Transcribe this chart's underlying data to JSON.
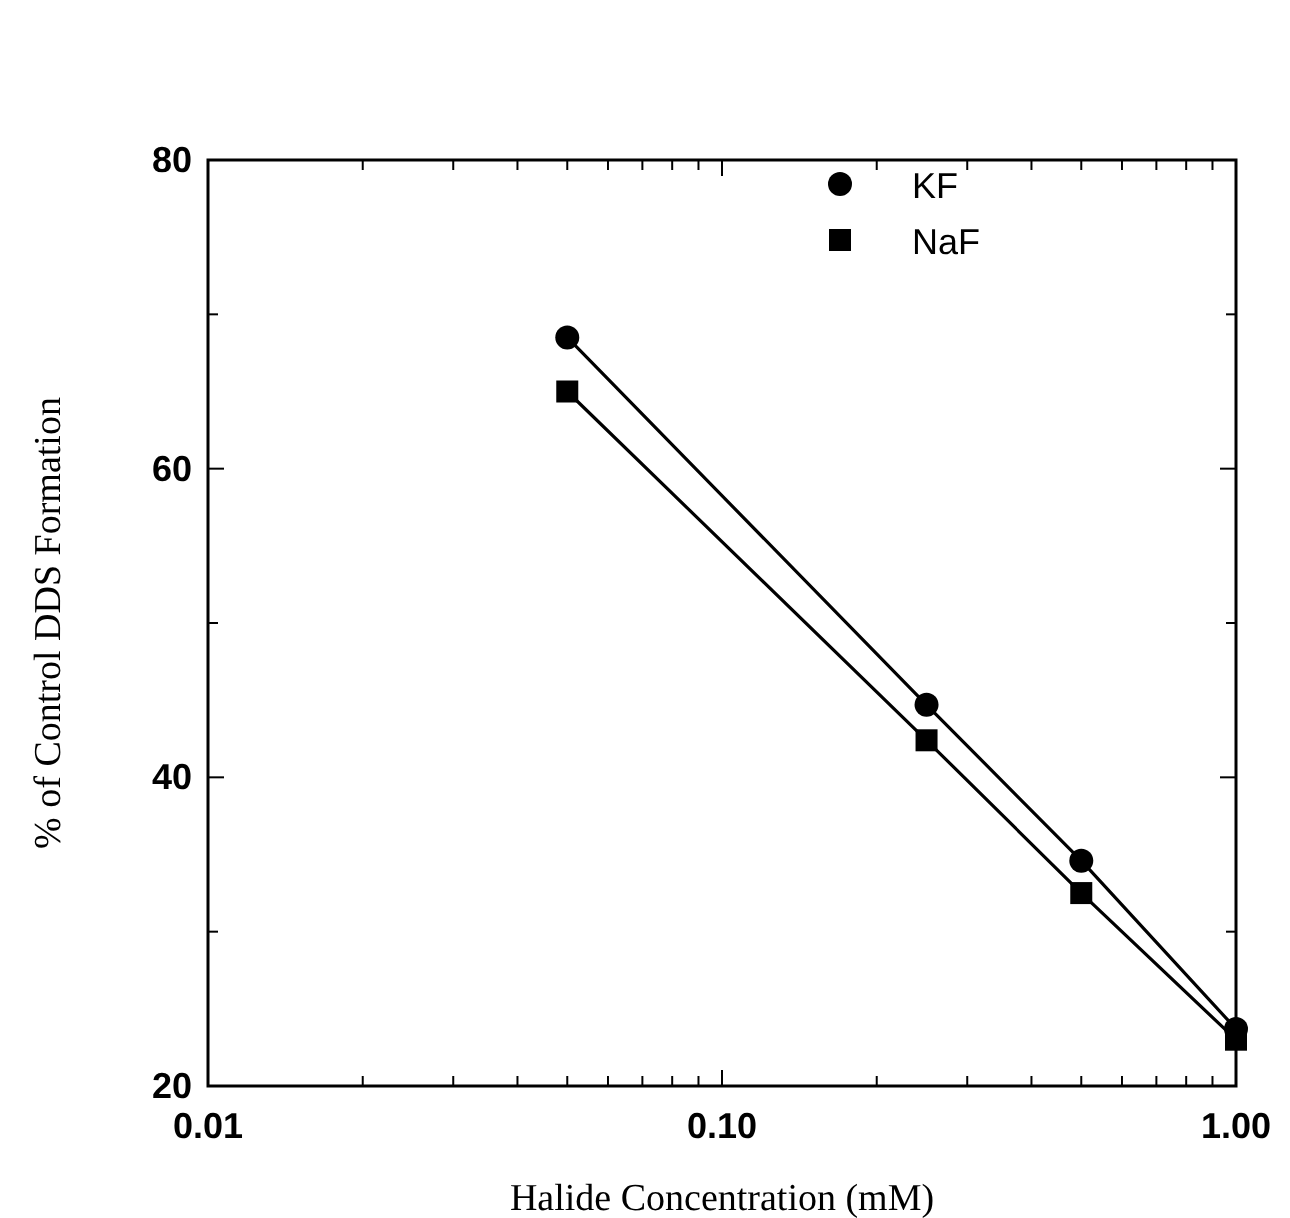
{
  "chart_data": {
    "type": "line",
    "xlabel": "Halide Concentration (mM)",
    "ylabel": "% of Control DDS Formation",
    "log": "x",
    "xlim": [
      0.01,
      1
    ],
    "ylim": [
      20,
      80
    ],
    "xticks": [
      {
        "value": 0.01,
        "label": "0.01"
      },
      {
        "value": 0.02,
        "label": null
      },
      {
        "value": 0.03,
        "label": null
      },
      {
        "value": 0.04,
        "label": null
      },
      {
        "value": 0.05,
        "label": null
      },
      {
        "value": 0.06,
        "label": null
      },
      {
        "value": 0.07,
        "label": null
      },
      {
        "value": 0.08,
        "label": null
      },
      {
        "value": 0.09,
        "label": null
      },
      {
        "value": 0.1,
        "label": "0.10"
      },
      {
        "value": 0.2,
        "label": null
      },
      {
        "value": 0.3,
        "label": null
      },
      {
        "value": 0.4,
        "label": null
      },
      {
        "value": 0.5,
        "label": null
      },
      {
        "value": 0.6,
        "label": null
      },
      {
        "value": 0.7,
        "label": null
      },
      {
        "value": 0.8,
        "label": null
      },
      {
        "value": 0.9,
        "label": null
      },
      {
        "value": 1,
        "label": "1.00"
      }
    ],
    "yticks": [
      20,
      {
        "value": 30,
        "label": null
      },
      40,
      {
        "value": 50,
        "label": null
      },
      60,
      {
        "value": 70,
        "label": null
      },
      80
    ],
    "x": [
      0.05,
      0.25,
      0.5,
      1.0
    ],
    "legend": "top right",
    "line_style": "solid",
    "grid": false,
    "series": [
      {
        "name": "KF",
        "color": "#000000",
        "marker": "circle",
        "values": [
          68.5,
          44.7,
          34.6,
          23.7
        ]
      },
      {
        "name": "NaF",
        "color": "#000000",
        "marker": "square",
        "values": [
          65.0,
          42.4,
          32.5,
          23.0
        ]
      }
    ]
  }
}
